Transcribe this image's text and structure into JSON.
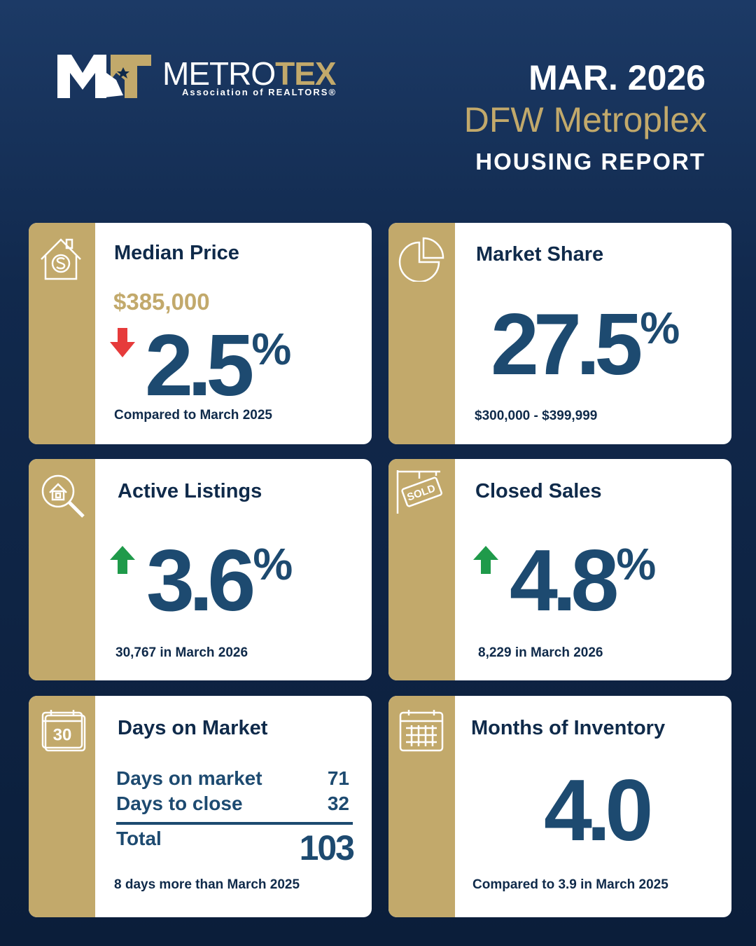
{
  "header": {
    "logo_main": "METRO",
    "logo_accent": "TEX",
    "logo_sub": "Association of REALTORS®",
    "date": "MAR. 2026",
    "region": "DFW Metroplex",
    "report": "HOUSING REPORT"
  },
  "cards": [
    {
      "title": "Median Price",
      "price": "$385,000",
      "value": "2.5",
      "unit": "%",
      "note": "Compared to March 2025"
    },
    {
      "title": "Market Share",
      "value": "27.5",
      "unit": "%",
      "note": "$300,000 - $399,999"
    },
    {
      "title": "Active Listings",
      "value": "3.6",
      "unit": "%",
      "note": "30,767 in March 2026"
    },
    {
      "title": "Closed Sales",
      "icon_text": "SOLD",
      "value": "4.8",
      "unit": "%",
      "note": "8,229 in March 2026"
    },
    {
      "title": "Days on Market",
      "icon_text": "30",
      "rows": [
        [
          "Days on market",
          "71"
        ],
        [
          "Days to close",
          "32"
        ]
      ],
      "total_label": "Total",
      "total_value": "103",
      "note": "8 days more than March 2025"
    },
    {
      "title": "Months of Inventory",
      "value": "4.0",
      "note": "Compared to 3.9 in March 2025"
    }
  ]
}
